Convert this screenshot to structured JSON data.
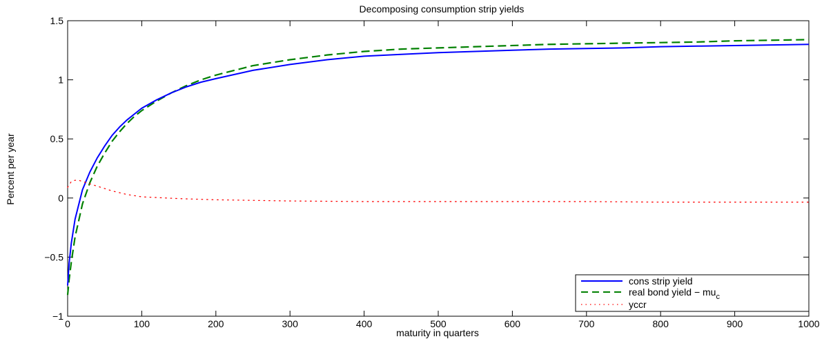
{
  "chart_data": {
    "type": "line",
    "title": "Decomposing consumption strip yields",
    "xlabel": "maturity in quarters",
    "ylabel": "Percent per year",
    "xlim": [
      0,
      1000
    ],
    "ylim": [
      -1,
      1.5
    ],
    "xticks": [
      0,
      100,
      200,
      300,
      400,
      500,
      600,
      700,
      800,
      900,
      1000
    ],
    "yticks": [
      -1,
      -0.5,
      0,
      0.5,
      1,
      1.5
    ],
    "xtick_labels": [
      "0",
      "100",
      "200",
      "300",
      "400",
      "500",
      "600",
      "700",
      "800",
      "900",
      "1000"
    ],
    "ytick_labels": [
      "−1",
      "−0.5",
      "0",
      "0.5",
      "1",
      "1.5"
    ],
    "grid": false,
    "legend_position": "bottom-right",
    "series": [
      {
        "name": "cons strip yield",
        "color": "#0000ff",
        "style": "solid",
        "x": [
          0,
          2,
          5,
          10,
          20,
          30,
          40,
          50,
          60,
          70,
          80,
          90,
          100,
          120,
          140,
          160,
          180,
          200,
          250,
          300,
          350,
          400,
          450,
          500,
          550,
          600,
          650,
          700,
          750,
          800,
          850,
          900,
          950,
          1000
        ],
        "y": [
          -0.74,
          -0.55,
          -0.38,
          -0.18,
          0.07,
          0.22,
          0.34,
          0.44,
          0.53,
          0.6,
          0.66,
          0.71,
          0.76,
          0.83,
          0.89,
          0.94,
          0.98,
          1.01,
          1.08,
          1.13,
          1.17,
          1.2,
          1.215,
          1.23,
          1.24,
          1.25,
          1.26,
          1.265,
          1.27,
          1.28,
          1.285,
          1.29,
          1.295,
          1.3
        ]
      },
      {
        "name": "real bond yield − mu",
        "name_subscript": "c",
        "color": "#008000",
        "style": "dashed",
        "x": [
          0,
          2,
          5,
          10,
          20,
          30,
          40,
          50,
          60,
          70,
          80,
          90,
          100,
          120,
          140,
          160,
          180,
          200,
          250,
          300,
          350,
          400,
          450,
          500,
          550,
          600,
          650,
          700,
          750,
          800,
          850,
          900,
          950,
          1000
        ],
        "y": [
          -0.82,
          -0.69,
          -0.54,
          -0.33,
          -0.05,
          0.13,
          0.27,
          0.38,
          0.48,
          0.56,
          0.63,
          0.69,
          0.74,
          0.82,
          0.89,
          0.95,
          1.0,
          1.04,
          1.12,
          1.17,
          1.21,
          1.24,
          1.26,
          1.27,
          1.28,
          1.29,
          1.3,
          1.305,
          1.31,
          1.315,
          1.32,
          1.33,
          1.335,
          1.34
        ]
      },
      {
        "name": "yccr",
        "color": "#ff0000",
        "style": "dotted",
        "x": [
          0,
          5,
          10,
          15,
          20,
          30,
          40,
          60,
          80,
          100,
          150,
          200,
          300,
          400,
          500,
          600,
          700,
          800,
          900,
          1000
        ],
        "y": [
          0.09,
          0.14,
          0.15,
          0.15,
          0.14,
          0.12,
          0.1,
          0.06,
          0.03,
          0.01,
          -0.005,
          -0.015,
          -0.025,
          -0.03,
          -0.03,
          -0.03,
          -0.03,
          -0.035,
          -0.035,
          -0.035
        ]
      }
    ]
  }
}
